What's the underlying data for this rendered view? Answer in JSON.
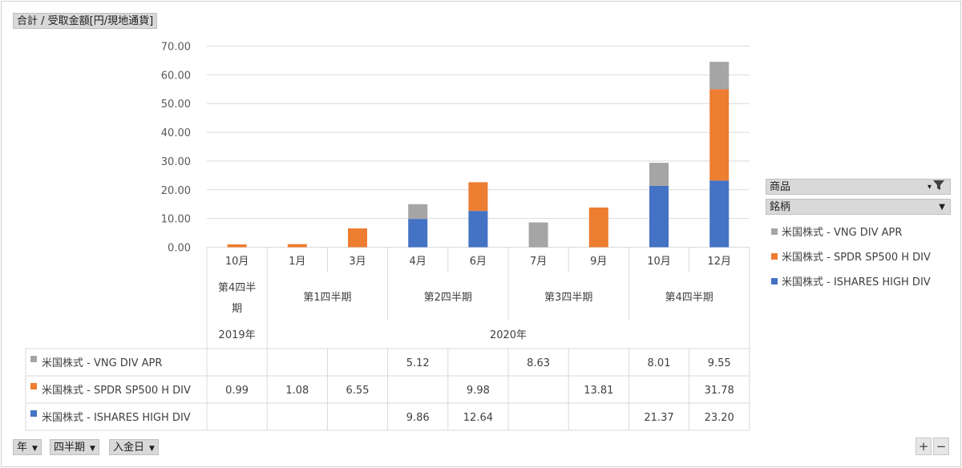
{
  "header": {
    "value_field": "合計 / 受取金額[円/現地通貨]"
  },
  "legend": {
    "field_product": "商品",
    "field_ticker": "銘柄",
    "items": [
      {
        "label": "米国株式 - VNG DIV APR",
        "color": "#a5a5a5"
      },
      {
        "label": "米国株式 - SPDR SP500 H DIV",
        "color": "#ed7d31"
      },
      {
        "label": "米国株式 - ISHARES HIGH DIV",
        "color": "#4472c4"
      }
    ]
  },
  "axis_fields": {
    "year": "年",
    "quarter": "四半期",
    "date": "入金日"
  },
  "zoom": {
    "plus": "+",
    "minus": "−"
  },
  "chart_data": {
    "type": "bar",
    "stacked": true,
    "categories": [
      "10月",
      "1月",
      "3月",
      "4月",
      "6月",
      "7月",
      "9月",
      "10月",
      "12月"
    ],
    "quarters": [
      {
        "label": "第4四半期",
        "span": 1
      },
      {
        "label": "第1四半期",
        "span": 2
      },
      {
        "label": "第2四半期",
        "span": 2
      },
      {
        "label": "第3四半期",
        "span": 2
      },
      {
        "label": "第4四半期",
        "span": 2
      }
    ],
    "years": [
      {
        "label": "2019年",
        "span": 1
      },
      {
        "label": "2020年",
        "span": 8
      }
    ],
    "ylim": [
      0,
      70
    ],
    "yticks": [
      "0.00",
      "10.00",
      "20.00",
      "30.00",
      "40.00",
      "50.00",
      "60.00",
      "70.00"
    ],
    "grid": true,
    "series": [
      {
        "name": "米国株式 - ISHARES HIGH DIV",
        "color": "#4472c4",
        "values": [
          null,
          null,
          null,
          9.86,
          12.64,
          null,
          null,
          21.37,
          23.2
        ],
        "labels": [
          "",
          "",
          "",
          "9.86",
          "12.64",
          "",
          "",
          "21.37",
          "23.20"
        ]
      },
      {
        "name": "米国株式 - SPDR SP500 H DIV",
        "color": "#ed7d31",
        "values": [
          0.99,
          1.08,
          6.55,
          null,
          9.98,
          null,
          13.81,
          null,
          31.78
        ],
        "labels": [
          "0.99",
          "1.08",
          "6.55",
          "",
          "9.98",
          "",
          "13.81",
          "",
          "31.78"
        ]
      },
      {
        "name": "米国株式 - VNG DIV APR",
        "color": "#a5a5a5",
        "values": [
          null,
          null,
          null,
          5.12,
          null,
          8.63,
          null,
          8.01,
          9.55
        ],
        "labels": [
          "",
          "",
          "",
          "5.12",
          "",
          "8.63",
          "",
          "8.01",
          "9.55"
        ]
      }
    ],
    "table_order": [
      2,
      1,
      0
    ]
  }
}
